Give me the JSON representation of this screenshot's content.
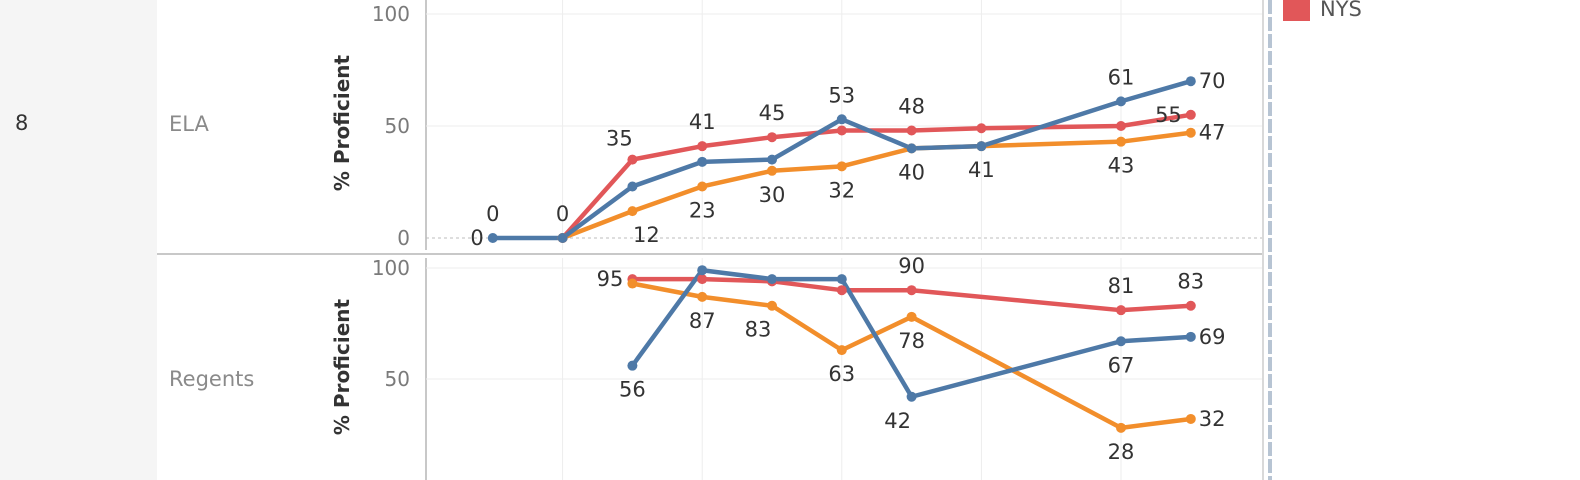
{
  "row_header": {
    "grade": "8"
  },
  "legend": [
    {
      "label": "NYS",
      "color": "#e15759"
    }
  ],
  "chart_data": [
    {
      "type": "line",
      "subject": "ELA",
      "ylabel": "% Proficient",
      "ylim": [
        0,
        100
      ],
      "yticks": [
        "0",
        "50",
        "100"
      ],
      "x": [
        1,
        2,
        3,
        4,
        5,
        6,
        7,
        8,
        10,
        11
      ],
      "series": [
        {
          "color": "#e15759",
          "values": [
            null,
            0,
            35,
            41,
            45,
            48,
            48,
            49,
            50,
            55
          ]
        },
        {
          "color": "#4e79a7",
          "values": [
            0,
            0,
            23,
            34,
            35,
            53,
            40,
            41,
            61,
            70
          ]
        },
        {
          "color": "#f28e2b",
          "values": [
            null,
            0,
            12,
            23,
            30,
            32,
            40,
            41,
            43,
            47
          ]
        }
      ],
      "labels": [
        {
          "text": "0",
          "x": 1,
          "y": 0,
          "pos": "left"
        },
        {
          "text": "0",
          "x": 1,
          "y": 0,
          "pos": "above"
        },
        {
          "text": "0",
          "x": 2,
          "y": 0,
          "pos": "above"
        },
        {
          "text": "35",
          "x": 3,
          "y": 35,
          "pos": "above-left"
        },
        {
          "text": "12",
          "x": 3,
          "y": 12,
          "pos": "below-right"
        },
        {
          "text": "41",
          "x": 4,
          "y": 41,
          "pos": "above"
        },
        {
          "text": "23",
          "x": 4,
          "y": 23,
          "pos": "below"
        },
        {
          "text": "45",
          "x": 5,
          "y": 45,
          "pos": "above"
        },
        {
          "text": "30",
          "x": 5,
          "y": 30,
          "pos": "below"
        },
        {
          "text": "53",
          "x": 6,
          "y": 53,
          "pos": "above"
        },
        {
          "text": "32",
          "x": 6,
          "y": 32,
          "pos": "below"
        },
        {
          "text": "48",
          "x": 7,
          "y": 48,
          "pos": "above"
        },
        {
          "text": "40",
          "x": 7,
          "y": 40,
          "pos": "below"
        },
        {
          "text": "41",
          "x": 8,
          "y": 41,
          "pos": "below"
        },
        {
          "text": "61",
          "x": 10,
          "y": 61,
          "pos": "above"
        },
        {
          "text": "43",
          "x": 10,
          "y": 43,
          "pos": "below"
        },
        {
          "text": "55",
          "x": 11,
          "y": 55,
          "pos": "left"
        },
        {
          "text": "70",
          "x": 11,
          "y": 70,
          "pos": "right"
        },
        {
          "text": "47",
          "x": 11,
          "y": 47,
          "pos": "right"
        }
      ]
    },
    {
      "type": "line",
      "subject": "Regents",
      "ylabel": "% Proficient",
      "ylim": [
        0,
        100
      ],
      "yticks": [
        "50",
        "100"
      ],
      "x": [
        3,
        4,
        5,
        6,
        7,
        10,
        11
      ],
      "series": [
        {
          "color": "#e15759",
          "values": [
            95,
            95,
            94,
            90,
            90,
            81,
            83
          ]
        },
        {
          "color": "#4e79a7",
          "values": [
            56,
            99,
            95,
            95,
            42,
            67,
            69
          ]
        },
        {
          "color": "#f28e2b",
          "values": [
            93,
            87,
            83,
            63,
            78,
            28,
            32
          ]
        }
      ],
      "labels": [
        {
          "text": "95",
          "x": 3,
          "y": 95,
          "pos": "left"
        },
        {
          "text": "56",
          "x": 3,
          "y": 56,
          "pos": "below"
        },
        {
          "text": "87",
          "x": 4,
          "y": 87,
          "pos": "below"
        },
        {
          "text": "83",
          "x": 5,
          "y": 83,
          "pos": "below-left"
        },
        {
          "text": "63",
          "x": 6,
          "y": 63,
          "pos": "below"
        },
        {
          "text": "90",
          "x": 7,
          "y": 90,
          "pos": "above"
        },
        {
          "text": "78",
          "x": 7,
          "y": 78,
          "pos": "below"
        },
        {
          "text": "42",
          "x": 7,
          "y": 42,
          "pos": "below-left"
        },
        {
          "text": "81",
          "x": 10,
          "y": 81,
          "pos": "above"
        },
        {
          "text": "67",
          "x": 10,
          "y": 67,
          "pos": "below"
        },
        {
          "text": "28",
          "x": 10,
          "y": 28,
          "pos": "below"
        },
        {
          "text": "83",
          "x": 11,
          "y": 83,
          "pos": "above"
        },
        {
          "text": "69",
          "x": 11,
          "y": 69,
          "pos": "right"
        },
        {
          "text": "32",
          "x": 11,
          "y": 32,
          "pos": "right"
        }
      ]
    }
  ]
}
